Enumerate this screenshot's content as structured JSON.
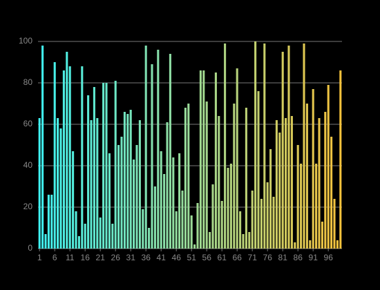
{
  "chart_data": {
    "type": "bar",
    "categories": [
      "1",
      null,
      null,
      null,
      null,
      "6",
      null,
      null,
      null,
      null,
      "11",
      null,
      null,
      null,
      null,
      "16",
      null,
      null,
      null,
      null,
      "21",
      null,
      null,
      null,
      null,
      "26",
      null,
      null,
      null,
      null,
      "31",
      null,
      null,
      null,
      null,
      "36",
      null,
      null,
      null,
      null,
      "41",
      null,
      null,
      null,
      null,
      "46",
      null,
      null,
      null,
      null,
      "51",
      null,
      null,
      null,
      null,
      "56",
      null,
      null,
      null,
      null,
      "61",
      null,
      null,
      null,
      null,
      "66",
      null,
      null,
      null,
      null,
      "71",
      null,
      null,
      null,
      null,
      "76",
      null,
      null,
      null,
      null,
      "81",
      null,
      null,
      null,
      null,
      "86",
      null,
      null,
      null,
      null,
      "91",
      null,
      null,
      null,
      null,
      "96",
      null,
      null,
      null,
      null
    ],
    "values": [
      63,
      98,
      7,
      26,
      26,
      90,
      63,
      58,
      86,
      95,
      88,
      47,
      18,
      6,
      88,
      12,
      74,
      62,
      78,
      63,
      15,
      80,
      80,
      46,
      12,
      81,
      50,
      54,
      66,
      65,
      67,
      43,
      50,
      62,
      19,
      98,
      10,
      89,
      30,
      96,
      47,
      36,
      61,
      94,
      44,
      18,
      46,
      28,
      68,
      70,
      16,
      2,
      22,
      86,
      86,
      71,
      8,
      31,
      85,
      64,
      23,
      99,
      39,
      41,
      70,
      87,
      18,
      7,
      68,
      8,
      28,
      100,
      76,
      24,
      99,
      32,
      48,
      25,
      62,
      56,
      95,
      63,
      98,
      64,
      3,
      50,
      41,
      99,
      70,
      4,
      77,
      41,
      63,
      13,
      66,
      79,
      54,
      24,
      4,
      86
    ],
    "gradient": [
      "#3ff2f2",
      "#f5c23c"
    ],
    "ylim": [
      0,
      100
    ],
    "yticks": [
      0,
      20,
      40,
      60,
      80,
      100
    ],
    "grid": true
  }
}
